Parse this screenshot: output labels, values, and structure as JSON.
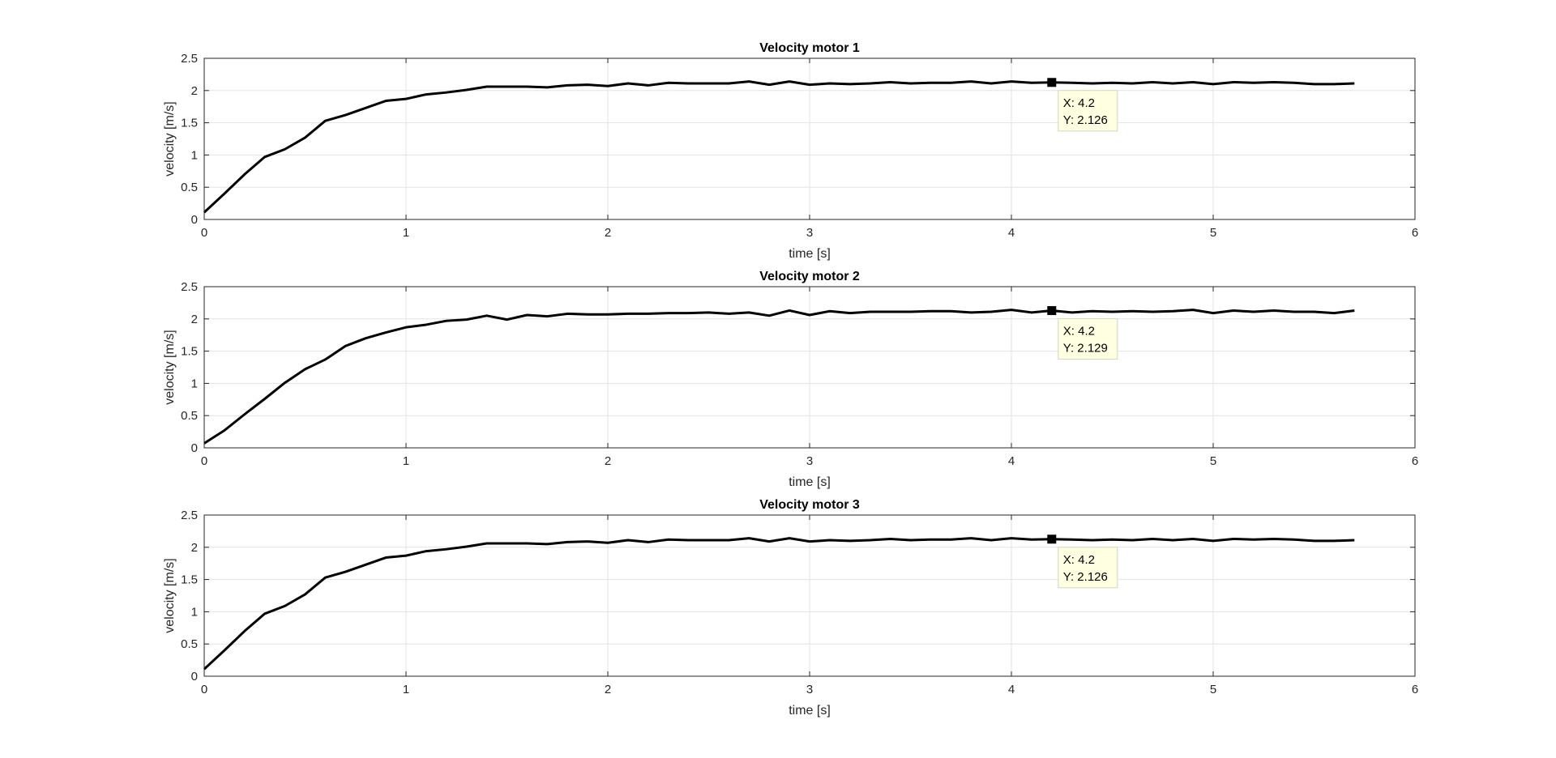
{
  "chart_data": [
    {
      "type": "line",
      "title": "Velocity motor 1",
      "xlabel": "time [s]",
      "ylabel": "velocity [m/s]",
      "xlim": [
        0,
        6
      ],
      "ylim": [
        0,
        2.5
      ],
      "xticks": [
        "0",
        "1",
        "2",
        "3",
        "4",
        "5",
        "6"
      ],
      "yticks": [
        "0",
        "0.5",
        "1",
        "1.5",
        "2",
        "2.5"
      ],
      "grid": true,
      "line_color": "#000000",
      "series": [
        {
          "x": [
            0,
            0.1,
            0.2,
            0.3,
            0.4,
            0.5,
            0.6,
            0.7,
            0.8,
            0.9,
            1.0,
            1.1,
            1.2,
            1.3,
            1.4,
            1.5,
            1.6,
            1.7,
            1.8,
            1.9,
            2.0,
            2.1,
            2.2,
            2.3,
            2.4,
            2.5,
            2.6,
            2.7,
            2.8,
            2.9,
            3.0,
            3.1,
            3.2,
            3.3,
            3.4,
            3.5,
            3.6,
            3.7,
            3.8,
            3.9,
            4.0,
            4.1,
            4.2,
            4.3,
            4.4,
            4.5,
            4.6,
            4.7,
            4.8,
            4.9,
            5.0,
            5.1,
            5.2,
            5.3,
            5.4,
            5.5,
            5.6,
            5.7
          ],
          "y": [
            0.11,
            0.4,
            0.7,
            0.97,
            1.09,
            1.27,
            1.53,
            1.62,
            1.73,
            1.84,
            1.87,
            1.94,
            1.97,
            2.01,
            2.06,
            2.06,
            2.06,
            2.05,
            2.08,
            2.09,
            2.07,
            2.11,
            2.08,
            2.12,
            2.11,
            2.11,
            2.11,
            2.14,
            2.09,
            2.14,
            2.09,
            2.11,
            2.1,
            2.11,
            2.13,
            2.11,
            2.12,
            2.12,
            2.14,
            2.11,
            2.14,
            2.12,
            2.126,
            2.12,
            2.11,
            2.12,
            2.11,
            2.13,
            2.11,
            2.13,
            2.1,
            2.13,
            2.12,
            2.13,
            2.12,
            2.1,
            2.1,
            2.11
          ]
        }
      ],
      "datatip": {
        "x_text": "X: 4.2",
        "y_text": "Y: 2.126",
        "x": 4.2,
        "y": 2.126
      }
    },
    {
      "type": "line",
      "title": "Velocity motor 2",
      "xlabel": "time [s]",
      "ylabel": "velocity [m/s]",
      "xlim": [
        0,
        6
      ],
      "ylim": [
        0,
        2.5
      ],
      "xticks": [
        "0",
        "1",
        "2",
        "3",
        "4",
        "5",
        "6"
      ],
      "yticks": [
        "0",
        "0.5",
        "1",
        "1.5",
        "2",
        "2.5"
      ],
      "grid": true,
      "line_color": "#000000",
      "series": [
        {
          "x": [
            0,
            0.1,
            0.2,
            0.3,
            0.4,
            0.5,
            0.6,
            0.7,
            0.8,
            0.9,
            1.0,
            1.1,
            1.2,
            1.3,
            1.4,
            1.5,
            1.6,
            1.7,
            1.8,
            1.9,
            2.0,
            2.1,
            2.2,
            2.3,
            2.4,
            2.5,
            2.6,
            2.7,
            2.8,
            2.9,
            3.0,
            3.1,
            3.2,
            3.3,
            3.4,
            3.5,
            3.6,
            3.7,
            3.8,
            3.9,
            4.0,
            4.1,
            4.2,
            4.3,
            4.4,
            4.5,
            4.6,
            4.7,
            4.8,
            4.9,
            5.0,
            5.1,
            5.2,
            5.3,
            5.4,
            5.5,
            5.6,
            5.7
          ],
          "y": [
            0.07,
            0.27,
            0.52,
            0.76,
            1.01,
            1.22,
            1.37,
            1.58,
            1.7,
            1.79,
            1.87,
            1.91,
            1.97,
            1.99,
            2.05,
            1.99,
            2.06,
            2.04,
            2.08,
            2.07,
            2.07,
            2.08,
            2.08,
            2.09,
            2.09,
            2.1,
            2.08,
            2.1,
            2.05,
            2.13,
            2.06,
            2.12,
            2.09,
            2.11,
            2.11,
            2.11,
            2.12,
            2.12,
            2.1,
            2.11,
            2.14,
            2.1,
            2.129,
            2.1,
            2.12,
            2.11,
            2.12,
            2.11,
            2.12,
            2.14,
            2.09,
            2.13,
            2.11,
            2.13,
            2.11,
            2.11,
            2.09,
            2.13
          ]
        }
      ],
      "datatip": {
        "x_text": "X: 4.2",
        "y_text": "Y: 2.129",
        "x": 4.2,
        "y": 2.129
      }
    },
    {
      "type": "line",
      "title": "Velocity motor 3",
      "xlabel": "time [s]",
      "ylabel": "velocity [m/s]",
      "xlim": [
        0,
        6
      ],
      "ylim": [
        0,
        2.5
      ],
      "xticks": [
        "0",
        "1",
        "2",
        "3",
        "4",
        "5",
        "6"
      ],
      "yticks": [
        "0",
        "0.5",
        "1",
        "1.5",
        "2",
        "2.5"
      ],
      "grid": true,
      "line_color": "#000000",
      "series": [
        {
          "x": [
            0,
            0.1,
            0.2,
            0.3,
            0.4,
            0.5,
            0.6,
            0.7,
            0.8,
            0.9,
            1.0,
            1.1,
            1.2,
            1.3,
            1.4,
            1.5,
            1.6,
            1.7,
            1.8,
            1.9,
            2.0,
            2.1,
            2.2,
            2.3,
            2.4,
            2.5,
            2.6,
            2.7,
            2.8,
            2.9,
            3.0,
            3.1,
            3.2,
            3.3,
            3.4,
            3.5,
            3.6,
            3.7,
            3.8,
            3.9,
            4.0,
            4.1,
            4.2,
            4.3,
            4.4,
            4.5,
            4.6,
            4.7,
            4.8,
            4.9,
            5.0,
            5.1,
            5.2,
            5.3,
            5.4,
            5.5,
            5.6,
            5.7
          ],
          "y": [
            0.11,
            0.4,
            0.7,
            0.97,
            1.09,
            1.27,
            1.53,
            1.62,
            1.73,
            1.84,
            1.87,
            1.94,
            1.97,
            2.01,
            2.06,
            2.06,
            2.06,
            2.05,
            2.08,
            2.09,
            2.07,
            2.11,
            2.08,
            2.12,
            2.11,
            2.11,
            2.11,
            2.14,
            2.09,
            2.14,
            2.09,
            2.11,
            2.1,
            2.11,
            2.13,
            2.11,
            2.12,
            2.12,
            2.14,
            2.11,
            2.14,
            2.12,
            2.126,
            2.12,
            2.11,
            2.12,
            2.11,
            2.13,
            2.11,
            2.13,
            2.1,
            2.13,
            2.12,
            2.13,
            2.12,
            2.1,
            2.1,
            2.11
          ]
        }
      ],
      "datatip": {
        "x_text": "X: 4.2",
        "y_text": "Y: 2.126",
        "x": 4.2,
        "y": 2.126
      }
    }
  ]
}
